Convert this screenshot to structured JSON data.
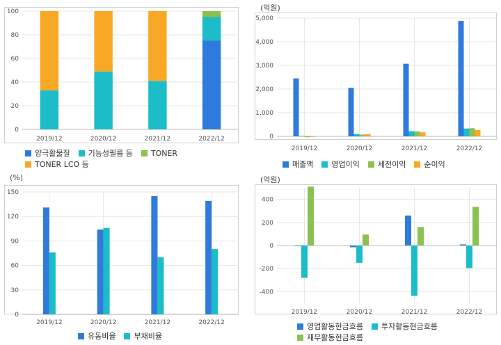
{
  "colors": {
    "blue": "#2e7bdc",
    "cyan": "#1cbcc8",
    "green": "#8cc152",
    "orange": "#f9a825",
    "grid": "#e6e6e6",
    "axis": "#bbbbbb"
  },
  "chart_data": [
    {
      "type": "bar",
      "stacked": true,
      "unit": "",
      "categories": [
        "2019/12",
        "2020/12",
        "2021/12",
        "2022/12"
      ],
      "ylim": [
        0,
        100
      ],
      "yticks": [
        0,
        20,
        40,
        60,
        80,
        100
      ],
      "grid": true,
      "legend_position": "bottom",
      "series": [
        {
          "name": "양극활물질",
          "color": "#2e7bdc",
          "values": [
            0,
            0,
            0,
            75
          ]
        },
        {
          "name": "기능성필름 등",
          "color": "#1cbcc8",
          "values": [
            33,
            49,
            41,
            20
          ]
        },
        {
          "name": "TONER",
          "color": "#8cc152",
          "values": [
            0,
            0,
            0,
            5
          ]
        },
        {
          "name": "TONER LCO 등",
          "color": "#f9a825",
          "values": [
            67,
            51,
            59,
            0
          ]
        }
      ]
    },
    {
      "type": "bar",
      "unit": "(억원)",
      "categories": [
        "2019/12",
        "2020/12",
        "2021/12",
        "2022/12"
      ],
      "ylim": [
        0,
        5000
      ],
      "yticks": [
        0,
        1000,
        2000,
        3000,
        4000,
        5000
      ],
      "ytick_labels": [
        "0",
        "1,000",
        "2,000",
        "3,000",
        "4,000",
        "5,000"
      ],
      "grid": true,
      "legend_position": "bottom",
      "series": [
        {
          "name": "매출액",
          "color": "#2e7bdc",
          "values": [
            2450,
            2050,
            3070,
            4880
          ]
        },
        {
          "name": "영업이익",
          "color": "#1cbcc8",
          "values": [
            20,
            95,
            215,
            330
          ]
        },
        {
          "name": "세전이익",
          "color": "#8cc152",
          "values": [
            -40,
            75,
            210,
            345
          ]
        },
        {
          "name": "순이익",
          "color": "#f9a825",
          "values": [
            -25,
            90,
            170,
            270
          ]
        }
      ]
    },
    {
      "type": "bar",
      "unit": "(%)",
      "categories": [
        "2019/12",
        "2020/12",
        "2021/12",
        "2022/12"
      ],
      "ylim": [
        0,
        150
      ],
      "yticks": [
        0,
        30,
        60,
        90,
        120,
        150
      ],
      "grid": true,
      "legend_position": "bottom",
      "series": [
        {
          "name": "유동비율",
          "color": "#2e7bdc",
          "values": [
            131,
            104,
            145,
            139
          ]
        },
        {
          "name": "부채비율",
          "color": "#1cbcc8",
          "values": [
            76,
            106,
            70,
            80
          ]
        }
      ]
    },
    {
      "type": "bar",
      "unit": "(억원)",
      "categories": [
        "2019/12",
        "2020/12",
        "2021/12",
        "2022/12"
      ],
      "ylim": [
        -500,
        500
      ],
      "yticks": [
        -400,
        -200,
        0,
        200,
        400
      ],
      "grid": true,
      "legend_position": "bottom",
      "series": [
        {
          "name": "영업활동현금흐름",
          "color": "#2e7bdc",
          "values": [
            0,
            -15,
            260,
            10
          ]
        },
        {
          "name": "투자활동현금흐름",
          "color": "#1cbcc8",
          "values": [
            -280,
            -150,
            -435,
            -195
          ]
        },
        {
          "name": "재무활동현금흐름",
          "color": "#8cc152",
          "values": [
            510,
            95,
            160,
            335
          ]
        }
      ]
    }
  ]
}
